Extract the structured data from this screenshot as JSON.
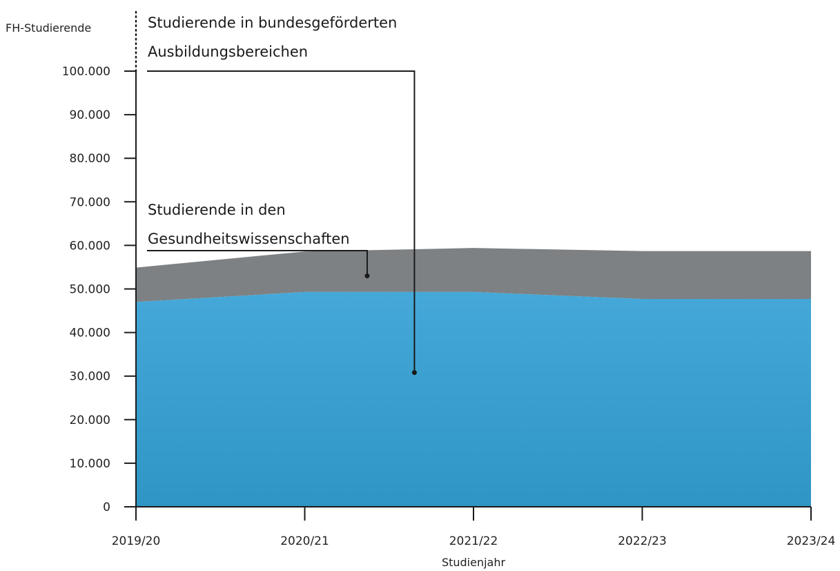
{
  "chart_data": {
    "type": "area",
    "stacked": true,
    "ylabel": "FH-Studierende",
    "xlabel": "Studienjahr",
    "categories": [
      "2019/20",
      "2020/21",
      "2021/22",
      "2022/23",
      "2023/24"
    ],
    "ylim": [
      0,
      100000
    ],
    "yticks": [
      0,
      10000,
      20000,
      30000,
      40000,
      50000,
      60000,
      70000,
      80000,
      90000,
      100000
    ],
    "ytick_labels": [
      "0",
      "10.000",
      "20.000",
      "30.000",
      "40.000",
      "50.000",
      "60.000",
      "70.000",
      "80.000",
      "90.000",
      "100.000"
    ],
    "series": [
      {
        "name": "Studierende in bundesgeförderten Ausbildungsbereichen",
        "label_lines": [
          "Studierende in bundesgeförderten",
          "Ausbildungsbereichen"
        ],
        "values": [
          47000,
          49300,
          49300,
          47700,
          47700
        ],
        "color": "#3a9fd0"
      },
      {
        "name": "Studierende in den Gesundheitswissenschaften",
        "label_lines": [
          "Studierende in den",
          "Gesundheitswissenschaften"
        ],
        "values": [
          7900,
          9300,
          10100,
          11000,
          11000
        ],
        "color": "#7d8184"
      }
    ],
    "grid": false
  }
}
